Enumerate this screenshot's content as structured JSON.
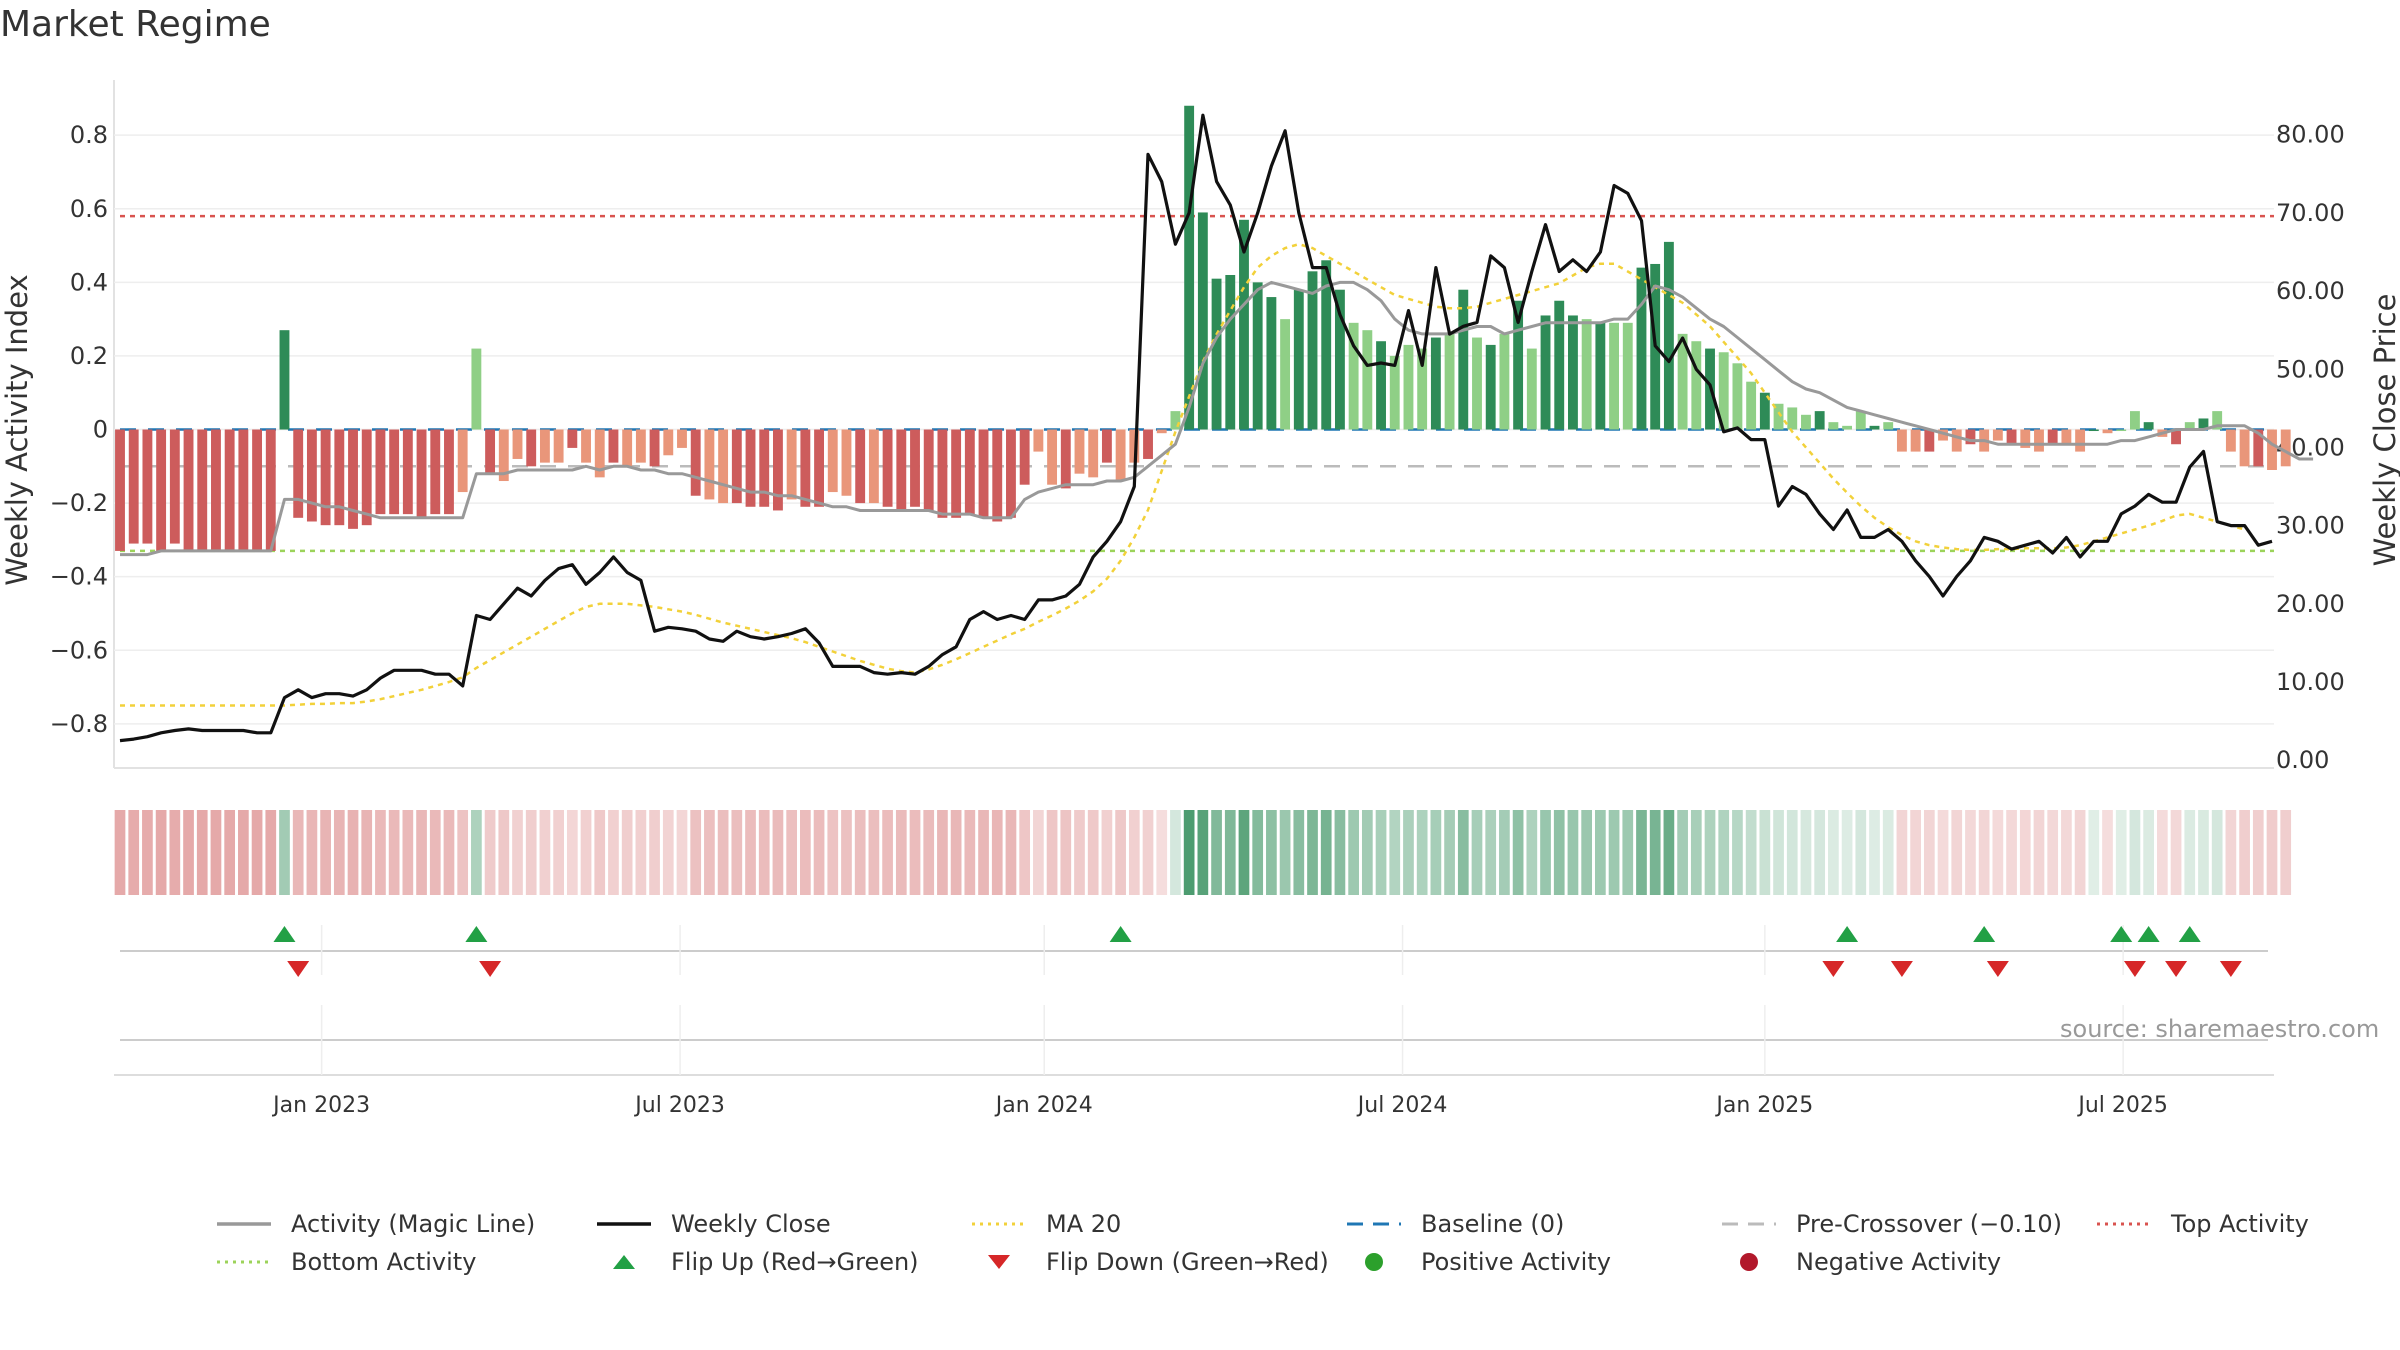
{
  "title": "Market Regime",
  "source": "source: sharemaestro.com",
  "chart_data": {
    "type": "bar",
    "title": "Market Regime",
    "ylabel_left": "Weekly Activity Index",
    "ylabel_right": "Weekly Close Price",
    "ylim_left": [
      -0.92,
      0.95
    ],
    "ylim_right": [
      -1.0,
      87.0
    ],
    "left_ticks": [
      0.8,
      0.6,
      0.4,
      0.2,
      0,
      -0.2,
      -0.4,
      -0.6,
      -0.8
    ],
    "left_tick_labels": [
      "0.8",
      "0.6",
      "0.4",
      "0.2",
      "0",
      "−0.2",
      "−0.4",
      "−0.6",
      "−0.8"
    ],
    "right_ticks": [
      80,
      70,
      60,
      50,
      40,
      30,
      20,
      10,
      0
    ],
    "right_tick_labels": [
      "80.00",
      "70.00",
      "60.00",
      "50.00",
      "40.00",
      "30.00",
      "20.00",
      "10.00",
      "0.00"
    ],
    "x_tick_labels": [
      "Jan 2023",
      "Jul 2023",
      "Jan 2024",
      "Jul 2024",
      "Jan 2025",
      "Jul 2025"
    ],
    "x_tick_weeks": [
      14.71,
      40.86,
      67.43,
      93.57,
      120.0,
      146.14
    ],
    "weeks": 158,
    "activity_values": [
      -0.33,
      -0.31,
      -0.31,
      -0.33,
      -0.31,
      -0.33,
      -0.33,
      -0.33,
      -0.33,
      -0.33,
      -0.33,
      -0.33,
      0.27,
      -0.24,
      -0.25,
      -0.26,
      -0.26,
      -0.27,
      -0.26,
      -0.23,
      -0.23,
      -0.23,
      -0.24,
      -0.23,
      -0.23,
      -0.17,
      0.22,
      -0.12,
      -0.14,
      -0.08,
      -0.1,
      -0.09,
      -0.09,
      -0.05,
      -0.09,
      -0.13,
      -0.09,
      -0.1,
      -0.09,
      -0.1,
      -0.07,
      -0.05,
      -0.18,
      -0.19,
      -0.2,
      -0.2,
      -0.21,
      -0.21,
      -0.22,
      -0.19,
      -0.21,
      -0.21,
      -0.17,
      -0.18,
      -0.2,
      -0.2,
      -0.21,
      -0.22,
      -0.21,
      -0.22,
      -0.24,
      -0.24,
      -0.23,
      -0.24,
      -0.25,
      -0.24,
      -0.15,
      -0.06,
      -0.15,
      -0.16,
      -0.12,
      -0.13,
      -0.09,
      -0.14,
      -0.09,
      -0.08,
      -0.01,
      0.05,
      0.88,
      0.59,
      0.41,
      0.42,
      0.57,
      0.4,
      0.36,
      0.3,
      0.38,
      0.43,
      0.46,
      0.38,
      0.29,
      0.27,
      0.24,
      0.2,
      0.23,
      0.22,
      0.25,
      0.26,
      0.38,
      0.25,
      0.23,
      0.26,
      0.35,
      0.22,
      0.31,
      0.35,
      0.31,
      0.3,
      0.29,
      0.29,
      0.29,
      0.44,
      0.45,
      0.51,
      0.26,
      0.24,
      0.22,
      0.21,
      0.18,
      0.13,
      0.1,
      0.07,
      0.06,
      0.04,
      0.05,
      0.02,
      0.01,
      0.05,
      0.01,
      0.02,
      -0.06,
      -0.06,
      -0.06,
      -0.03,
      -0.06,
      -0.04,
      -0.06,
      -0.03,
      -0.04,
      -0.05,
      -0.06,
      -0.04,
      -0.04,
      -0.06,
      0.0,
      -0.01,
      0.0,
      0.05,
      0.02,
      -0.02,
      -0.04,
      0.02,
      0.03,
      0.05,
      -0.06,
      -0.1,
      -0.1,
      -0.11,
      -0.1
    ],
    "series": [
      {
        "name": "Activity (Magic Line)",
        "color": "#999999",
        "values": [
          -0.34,
          -0.34,
          -0.34,
          -0.33,
          -0.33,
          -0.33,
          -0.33,
          -0.33,
          -0.33,
          -0.33,
          -0.33,
          -0.33,
          -0.19,
          -0.19,
          -0.2,
          -0.21,
          -0.21,
          -0.22,
          -0.23,
          -0.24,
          -0.24,
          -0.24,
          -0.24,
          -0.24,
          -0.24,
          -0.24,
          -0.12,
          -0.12,
          -0.12,
          -0.11,
          -0.11,
          -0.11,
          -0.11,
          -0.11,
          -0.1,
          -0.11,
          -0.1,
          -0.1,
          -0.11,
          -0.11,
          -0.12,
          -0.12,
          -0.13,
          -0.14,
          -0.15,
          -0.16,
          -0.17,
          -0.17,
          -0.18,
          -0.18,
          -0.19,
          -0.2,
          -0.21,
          -0.21,
          -0.22,
          -0.22,
          -0.22,
          -0.22,
          -0.22,
          -0.22,
          -0.23,
          -0.23,
          -0.23,
          -0.24,
          -0.24,
          -0.24,
          -0.19,
          -0.17,
          -0.16,
          -0.15,
          -0.15,
          -0.15,
          -0.14,
          -0.14,
          -0.13,
          -0.1,
          -0.07,
          -0.04,
          0.06,
          0.18,
          0.25,
          0.3,
          0.34,
          0.38,
          0.4,
          0.39,
          0.38,
          0.37,
          0.39,
          0.4,
          0.4,
          0.38,
          0.35,
          0.3,
          0.27,
          0.26,
          0.26,
          0.26,
          0.27,
          0.28,
          0.28,
          0.26,
          0.27,
          0.28,
          0.29,
          0.29,
          0.29,
          0.29,
          0.29,
          0.3,
          0.3,
          0.34,
          0.39,
          0.38,
          0.36,
          0.33,
          0.3,
          0.28,
          0.25,
          0.22,
          0.19,
          0.16,
          0.13,
          0.11,
          0.1,
          0.08,
          0.06,
          0.05,
          0.04,
          0.03,
          0.02,
          0.01,
          0.0,
          -0.01,
          -0.02,
          -0.03,
          -0.03,
          -0.04,
          -0.04,
          -0.04,
          -0.04,
          -0.04,
          -0.04,
          -0.04,
          -0.04,
          -0.04,
          -0.03,
          -0.03,
          -0.02,
          -0.01,
          0.0,
          0.0,
          0.0,
          0.01,
          0.01,
          0.01,
          -0.01,
          -0.04,
          -0.06,
          -0.08,
          -0.08
        ]
      },
      {
        "name": "Weekly Close",
        "color": "#111111",
        "values": [
          2.5,
          2.7,
          3.0,
          3.5,
          3.8,
          4.0,
          3.8,
          3.8,
          3.8,
          3.8,
          3.5,
          3.5,
          8.0,
          9.0,
          8.0,
          8.5,
          8.5,
          8.2,
          9.0,
          10.5,
          11.5,
          11.5,
          11.5,
          11.0,
          11.0,
          9.5,
          18.5,
          18.0,
          20.0,
          22.0,
          21.0,
          23.0,
          24.5,
          25.0,
          22.5,
          24.0,
          26.0,
          24.0,
          23.0,
          16.5,
          17.0,
          16.8,
          16.5,
          15.5,
          15.2,
          16.5,
          15.8,
          15.5,
          15.8,
          16.2,
          16.8,
          15.0,
          12.0,
          12.0,
          12.0,
          11.2,
          11.0,
          11.2,
          11.0,
          12.0,
          13.5,
          14.5,
          18.0,
          19.0,
          18.0,
          18.5,
          18.0,
          20.5,
          20.5,
          21.0,
          22.5,
          26.0,
          28.0,
          30.5,
          35.0,
          77.5,
          74.0,
          66.0,
          70.0,
          82.5,
          74.0,
          71.0,
          65.0,
          70.0,
          76.0,
          80.5,
          70.0,
          63.0,
          63.0,
          57.0,
          53.0,
          50.5,
          50.8,
          50.5,
          57.5,
          50.5,
          63.0,
          54.5,
          55.5,
          56.0,
          64.5,
          63.0,
          56.0,
          62.5,
          68.5,
          62.5,
          64.0,
          62.5,
          65.0,
          73.5,
          72.5,
          69.0,
          53.0,
          51.0,
          54.0,
          50.0,
          48.0,
          42.0,
          42.5,
          41.0,
          41.0,
          32.5,
          35.0,
          34.0,
          31.5,
          29.5,
          32.0,
          28.5,
          28.5,
          29.5,
          28.0,
          25.5,
          23.5,
          21.0,
          23.5,
          25.5,
          28.5,
          28.0,
          27.0,
          27.5,
          28.0,
          26.5,
          28.5,
          26.0,
          28.0,
          28.0,
          31.5,
          32.5,
          34.0,
          33.0,
          33.0,
          37.5,
          39.5,
          30.5,
          30.0,
          30.0,
          27.5,
          28.0
        ]
      },
      {
        "name": "MA 20",
        "color": "#f2d13a",
        "values": [
          7.0,
          7.0,
          7.0,
          7.0,
          7.0,
          7.0,
          7.0,
          7.0,
          7.0,
          7.0,
          7.0,
          7.0,
          7.0,
          7.1,
          7.2,
          7.2,
          7.3,
          7.3,
          7.5,
          7.8,
          8.2,
          8.6,
          9.0,
          9.5,
          10.0,
          10.6,
          11.8,
          12.8,
          13.8,
          14.8,
          15.8,
          16.8,
          17.8,
          18.8,
          19.6,
          20.0,
          20.0,
          20.0,
          19.8,
          19.6,
          19.3,
          19.0,
          18.6,
          18.1,
          17.6,
          17.2,
          16.8,
          16.4,
          16.0,
          15.6,
          15.1,
          14.5,
          13.9,
          13.3,
          12.7,
          12.2,
          11.7,
          11.4,
          11.2,
          11.6,
          12.2,
          12.9,
          13.7,
          14.5,
          15.3,
          16.1,
          16.8,
          17.7,
          18.5,
          19.4,
          20.4,
          21.6,
          23.2,
          25.5,
          28.5,
          32.0,
          37.0,
          42.0,
          46.5,
          51.0,
          54.5,
          57.5,
          60.5,
          63.0,
          64.5,
          65.5,
          66.0,
          65.5,
          64.5,
          63.5,
          62.5,
          61.5,
          60.5,
          59.5,
          59.0,
          58.5,
          58.0,
          57.8,
          57.8,
          58.0,
          58.5,
          59.0,
          59.5,
          60.0,
          60.5,
          61.0,
          62.0,
          63.0,
          63.5,
          63.5,
          62.5,
          61.5,
          60.5,
          59.5,
          58.5,
          57.0,
          55.5,
          53.5,
          51.5,
          49.5,
          47.0,
          44.5,
          42.0,
          40.0,
          38.0,
          36.0,
          34.2,
          32.5,
          31.0,
          29.8,
          28.8,
          28.0,
          27.5,
          27.2,
          27.0,
          26.9,
          26.9,
          27.0,
          27.0,
          27.1,
          27.1,
          27.1,
          27.2,
          27.5,
          28.0,
          28.5,
          29.0,
          29.5,
          30.0,
          30.6,
          31.3,
          31.5,
          31.0,
          30.5,
          30.0,
          29.5
        ]
      }
    ],
    "baseline": {
      "name": "Baseline (0)",
      "value": 0,
      "color": "#1f77b4"
    },
    "pre_crossover": {
      "name": "Pre-Crossover (−0.10)",
      "value": -0.1,
      "color": "#bbbbbb"
    },
    "top_activity": {
      "name": "Top Activity",
      "value": 0.58,
      "color": "#d9534f"
    },
    "bottom_activity": {
      "name": "Bottom Activity",
      "value": -0.33,
      "color": "#9cd35a"
    },
    "flip_up_weeks": [
      12,
      26,
      73,
      126,
      136,
      146,
      148,
      151
    ],
    "flip_down_weeks": [
      13,
      27,
      125,
      130,
      137,
      147,
      150,
      154
    ],
    "regime_strip_values": [
      -0.33,
      -0.31,
      -0.31,
      -0.33,
      -0.31,
      -0.33,
      -0.33,
      -0.33,
      -0.33,
      -0.33,
      -0.33,
      -0.33,
      0.27,
      -0.24,
      -0.25,
      -0.26,
      -0.26,
      -0.27,
      -0.26,
      -0.23,
      -0.23,
      -0.23,
      -0.24,
      -0.23,
      -0.23,
      -0.17,
      0.22,
      -0.12,
      -0.14,
      -0.08,
      -0.1,
      -0.09,
      -0.09,
      -0.05,
      -0.09,
      -0.13,
      -0.09,
      -0.1,
      -0.09,
      -0.1,
      -0.07,
      -0.05,
      -0.18,
      -0.19,
      -0.2,
      -0.2,
      -0.21,
      -0.21,
      -0.22,
      -0.19,
      -0.21,
      -0.21,
      -0.17,
      -0.18,
      -0.2,
      -0.2,
      -0.21,
      -0.22,
      -0.21,
      -0.22,
      -0.24,
      -0.24,
      -0.23,
      -0.24,
      -0.25,
      -0.24,
      -0.15,
      -0.06,
      -0.15,
      -0.16,
      -0.12,
      -0.13,
      -0.09,
      -0.14,
      -0.09,
      -0.08,
      -0.01,
      0.05,
      0.88,
      0.59,
      0.41,
      0.42,
      0.57,
      0.4,
      0.36,
      0.3,
      0.38,
      0.43,
      0.46,
      0.38,
      0.29,
      0.27,
      0.24,
      0.2,
      0.23,
      0.22,
      0.25,
      0.26,
      0.38,
      0.25,
      0.23,
      0.26,
      0.35,
      0.22,
      0.31,
      0.35,
      0.31,
      0.3,
      0.29,
      0.29,
      0.29,
      0.44,
      0.45,
      0.51,
      0.26,
      0.24,
      0.22,
      0.21,
      0.18,
      0.13,
      0.1,
      0.07,
      0.06,
      0.04,
      0.05,
      0.02,
      0.01,
      0.05,
      0.01,
      0.02,
      -0.06,
      -0.06,
      -0.06,
      -0.03,
      -0.06,
      -0.04,
      -0.06,
      -0.03,
      -0.04,
      -0.05,
      -0.06,
      -0.04,
      -0.04,
      -0.06,
      0.0,
      -0.01,
      0.0,
      0.05,
      0.02,
      -0.02,
      -0.04,
      0.02,
      0.03,
      0.05,
      -0.06,
      -0.1,
      -0.1,
      -0.11,
      -0.1
    ],
    "colors": {
      "positive_strong": "#2e8b57",
      "positive_weak": "#8fcf86",
      "negative_strong": "#cd5c5c",
      "negative_weak": "#e9967a",
      "flip_up": "#22a045",
      "flip_down": "#d62728",
      "positive_marker": "#2ca02c",
      "negative_marker": "#b2182b"
    },
    "legend_position": "bottom",
    "grid": true
  },
  "legend": [
    {
      "label": "Activity (Magic Line)",
      "symbol": "solid-line",
      "color": "#999999"
    },
    {
      "label": "Weekly Close",
      "symbol": "solid-line",
      "color": "#111111"
    },
    {
      "label": "MA 20",
      "symbol": "dotted-line",
      "color": "#f2d13a"
    },
    {
      "label": "Baseline (0)",
      "symbol": "dashed-line",
      "color": "#1f77b4"
    },
    {
      "label": "Pre-Crossover (−0.10)",
      "symbol": "dashed-line",
      "color": "#bbbbbb"
    },
    {
      "label": "Top Activity",
      "symbol": "dotted-line",
      "color": "#d9534f"
    },
    {
      "label": "Bottom Activity",
      "symbol": "dotted-line",
      "color": "#9cd35a"
    },
    {
      "label": "Flip Up (Red→Green)",
      "symbol": "triangle-up-icon",
      "color": "#22a045"
    },
    {
      "label": "Flip Down (Green→Red)",
      "symbol": "triangle-down-icon",
      "color": "#d62728"
    },
    {
      "label": "Positive Activity",
      "symbol": "circle-icon",
      "color": "#2ca02c"
    },
    {
      "label": "Negative Activity",
      "symbol": "circle-icon",
      "color": "#b2182b"
    }
  ]
}
